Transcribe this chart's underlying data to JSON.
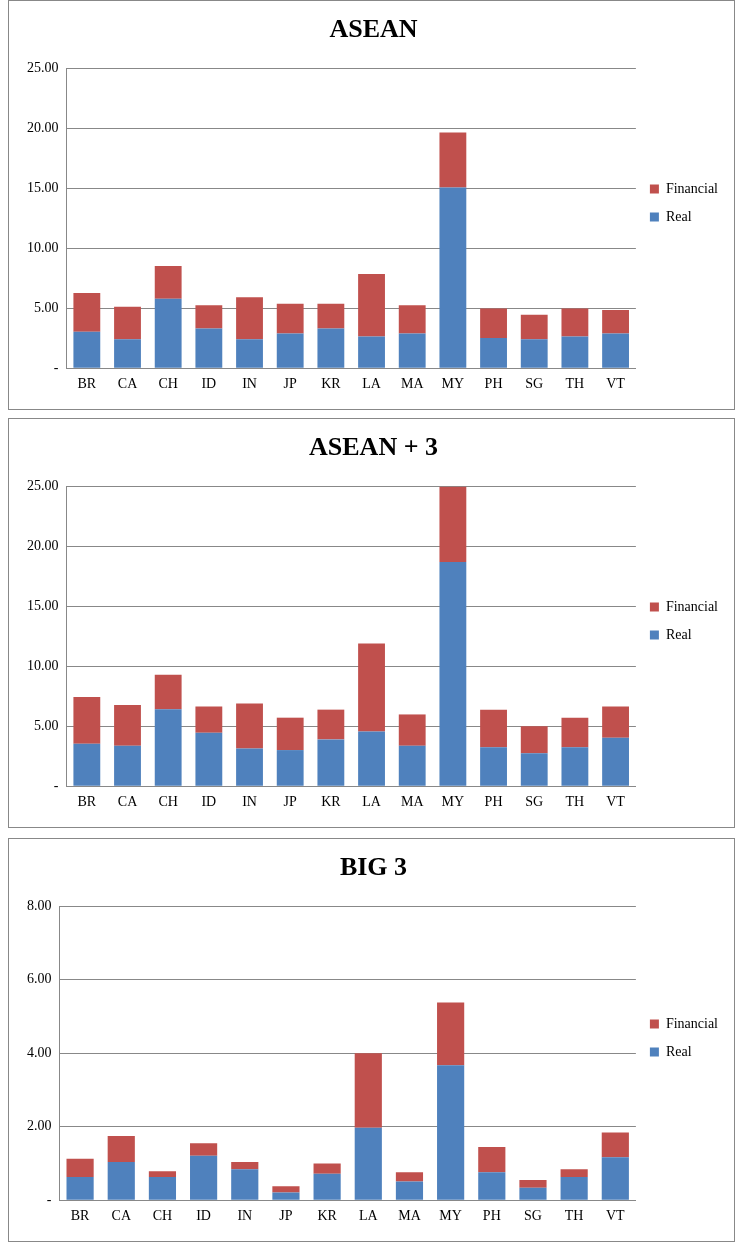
{
  "chart_data": [
    {
      "type": "bar",
      "title": "ASEAN",
      "stacked": true,
      "categories": [
        "BR",
        "CA",
        "CH",
        "ID",
        "IN",
        "JP",
        "KR",
        "LA",
        "MA",
        "MY",
        "PH",
        "SG",
        "TH",
        "VT"
      ],
      "series": [
        {
          "name": "Real",
          "color": "#4f81bd",
          "values": [
            3.04,
            2.41,
            5.78,
            3.3,
            2.41,
            2.9,
            3.3,
            2.64,
            2.9,
            15.05,
            2.51,
            2.41,
            2.64,
            2.9
          ]
        },
        {
          "name": "Financial",
          "color": "#c0504d",
          "values": [
            3.23,
            2.71,
            2.73,
            1.95,
            3.5,
            2.48,
            2.08,
            5.21,
            2.35,
            4.59,
            2.47,
            2.05,
            2.34,
            1.95
          ]
        }
      ],
      "ylim": [
        0,
        25
      ],
      "yticks": [
        {
          "value": 0,
          "label": "-"
        },
        {
          "value": 5,
          "label": "5.00"
        },
        {
          "value": 10,
          "label": "10.00"
        },
        {
          "value": 15,
          "label": "15.00"
        },
        {
          "value": 20,
          "label": "20.00"
        },
        {
          "value": 25,
          "label": "25.00"
        }
      ],
      "grid": "y",
      "legend": "right"
    },
    {
      "type": "bar",
      "title": "ASEAN + 3",
      "stacked": true,
      "categories": [
        "BR",
        "CA",
        "CH",
        "ID",
        "IN",
        "JP",
        "KR",
        "LA",
        "MA",
        "MY",
        "PH",
        "SG",
        "TH",
        "VT"
      ],
      "series": [
        {
          "name": "Real",
          "color": "#4f81bd",
          "values": [
            3.53,
            3.37,
            6.41,
            4.46,
            3.14,
            3.01,
            3.9,
            4.56,
            3.37,
            18.69,
            3.24,
            2.74,
            3.24,
            4.03
          ]
        },
        {
          "name": "Financial",
          "color": "#c0504d",
          "values": [
            3.9,
            3.4,
            2.87,
            2.18,
            3.76,
            2.7,
            2.48,
            7.33,
            2.61,
            6.26,
            3.14,
            2.25,
            2.47,
            2.61
          ]
        }
      ],
      "ylim": [
        0,
        25
      ],
      "yticks": [
        {
          "value": 0,
          "label": "-"
        },
        {
          "value": 5,
          "label": "5.00"
        },
        {
          "value": 10,
          "label": "10.00"
        },
        {
          "value": 15,
          "label": "15.00"
        },
        {
          "value": 20,
          "label": "20.00"
        },
        {
          "value": 25,
          "label": "25.00"
        }
      ],
      "grid": "y",
      "legend": "right"
    },
    {
      "type": "bar",
      "title": "BIG 3",
      "stacked": true,
      "categories": [
        "BR",
        "CA",
        "CH",
        "ID",
        "IN",
        "JP",
        "KR",
        "LA",
        "MA",
        "MY",
        "PH",
        "SG",
        "TH",
        "VT"
      ],
      "series": [
        {
          "name": "Real",
          "color": "#4f81bd",
          "values": [
            0.63,
            1.04,
            0.63,
            1.21,
            0.84,
            0.21,
            0.72,
            1.97,
            0.51,
            3.67,
            0.76,
            0.34,
            0.63,
            1.17
          ]
        },
        {
          "name": "Financial",
          "color": "#c0504d",
          "values": [
            0.5,
            0.71,
            0.16,
            0.34,
            0.2,
            0.17,
            0.28,
            2.03,
            0.25,
            1.71,
            0.69,
            0.21,
            0.21,
            0.67
          ]
        }
      ],
      "ylim": [
        0,
        8
      ],
      "yticks": [
        {
          "value": 0,
          "label": "-"
        },
        {
          "value": 2,
          "label": "2.00"
        },
        {
          "value": 4,
          "label": "4.00"
        },
        {
          "value": 6,
          "label": "6.00"
        },
        {
          "value": 8,
          "label": "8.00"
        }
      ],
      "grid": "y",
      "legend": "right"
    }
  ]
}
